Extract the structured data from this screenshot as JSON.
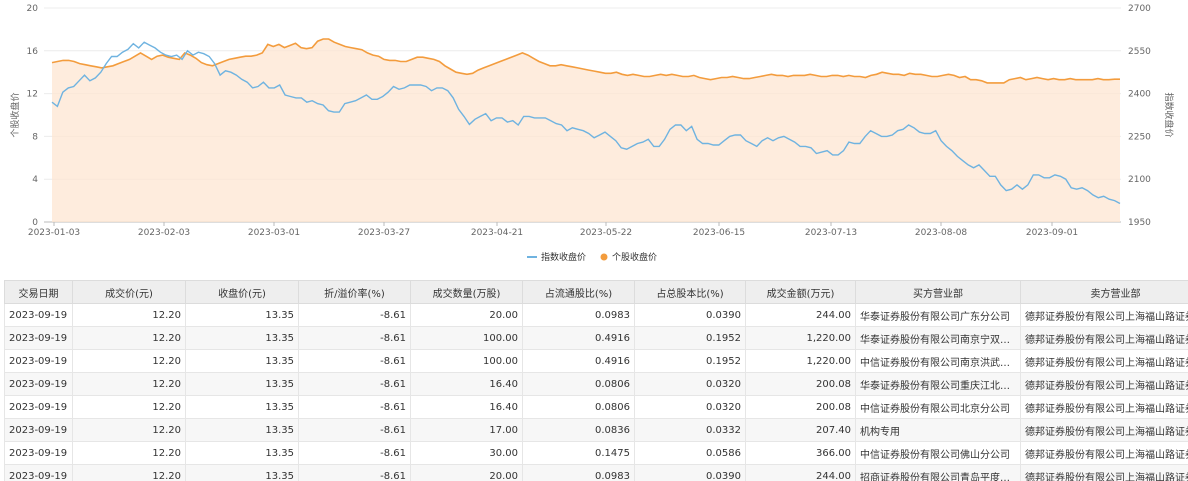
{
  "chart_data": {
    "type": "line",
    "x_ticks": [
      "2023-01-03",
      "2023-02-03",
      "2023-03-01",
      "2023-03-27",
      "2023-04-21",
      "2023-05-22",
      "2023-06-15",
      "2023-07-13",
      "2023-08-08",
      "2023-09-01"
    ],
    "y_left": {
      "label": "个股收盘价",
      "ticks": [
        0,
        4,
        8,
        12,
        16,
        20
      ],
      "range": [
        0,
        20
      ]
    },
    "y_right": {
      "label": "指数收盘价",
      "ticks": [
        1950,
        2100,
        2250,
        2400,
        2550,
        2700
      ],
      "range": [
        1950,
        2700
      ]
    },
    "grid": true,
    "legend_position": "bottom",
    "colors": {
      "index": "#6fb3e0",
      "stock": "#f39c3d",
      "stock_fill": "#fde6d2"
    },
    "series": [
      {
        "name": "指数收盘价",
        "axis": "right",
        "values": [
          2370,
          2355,
          2405,
          2420,
          2425,
          2445,
          2465,
          2445,
          2455,
          2475,
          2505,
          2530,
          2530,
          2545,
          2555,
          2575,
          2560,
          2580,
          2570,
          2560,
          2545,
          2535,
          2530,
          2535,
          2520,
          2550,
          2535,
          2545,
          2540,
          2530,
          2505,
          2465,
          2480,
          2475,
          2465,
          2450,
          2440,
          2420,
          2425,
          2440,
          2420,
          2420,
          2430,
          2395,
          2390,
          2385,
          2385,
          2370,
          2375,
          2365,
          2360,
          2340,
          2335,
          2335,
          2365,
          2370,
          2375,
          2385,
          2395,
          2380,
          2380,
          2390,
          2405,
          2425,
          2415,
          2420,
          2430,
          2430,
          2430,
          2425,
          2410,
          2420,
          2420,
          2410,
          2385,
          2345,
          2320,
          2292,
          2310,
          2320,
          2330,
          2305,
          2315,
          2315,
          2300,
          2305,
          2290,
          2320,
          2320,
          2315,
          2315,
          2315,
          2305,
          2295,
          2290,
          2270,
          2280,
          2275,
          2270,
          2260,
          2245,
          2255,
          2265,
          2250,
          2235,
          2210,
          2205,
          2215,
          2225,
          2230,
          2240,
          2215,
          2215,
          2240,
          2275,
          2290,
          2290,
          2270,
          2285,
          2240,
          2225,
          2225,
          2220,
          2220,
          2235,
          2250,
          2255,
          2255,
          2235,
          2225,
          2215,
          2235,
          2245,
          2235,
          2245,
          2250,
          2240,
          2230,
          2215,
          2215,
          2210,
          2190,
          2195,
          2200,
          2185,
          2185,
          2200,
          2230,
          2225,
          2225,
          2250,
          2270,
          2260,
          2250,
          2250,
          2255,
          2270,
          2275,
          2290,
          2280,
          2265,
          2260,
          2260,
          2270,
          2235,
          2215,
          2200,
          2180,
          2165,
          2150,
          2140,
          2150,
          2130,
          2110,
          2110,
          2080,
          2060,
          2065,
          2080,
          2065,
          2080,
          2115,
          2115,
          2105,
          2105,
          2115,
          2110,
          2100,
          2070,
          2065,
          2070,
          2060,
          2045,
          2035,
          2040,
          2030,
          2025,
          2015
        ]
      },
      {
        "name": "个股收盘价",
        "axis": "left",
        "values": [
          14.9,
          15.0,
          15.1,
          15.1,
          15.0,
          14.8,
          14.7,
          14.6,
          14.5,
          14.4,
          14.5,
          14.6,
          14.8,
          15.0,
          15.2,
          15.5,
          15.8,
          15.5,
          15.2,
          15.5,
          15.6,
          15.4,
          15.3,
          15.2,
          15.8,
          15.6,
          15.3,
          14.9,
          14.7,
          14.6,
          14.8,
          15.0,
          15.2,
          15.3,
          15.4,
          15.5,
          15.5,
          15.6,
          15.8,
          16.6,
          16.4,
          16.6,
          16.3,
          16.5,
          16.7,
          16.3,
          16.2,
          16.3,
          16.9,
          17.1,
          17.1,
          16.8,
          16.6,
          16.4,
          16.3,
          16.2,
          16.1,
          15.8,
          15.6,
          15.5,
          15.2,
          15.1,
          15.1,
          15.0,
          15.0,
          15.2,
          15.4,
          15.4,
          15.3,
          15.2,
          15.0,
          14.6,
          14.3,
          14.0,
          13.9,
          13.8,
          13.9,
          14.2,
          14.4,
          14.6,
          14.8,
          15.0,
          15.2,
          15.4,
          15.6,
          15.8,
          15.6,
          15.3,
          15.0,
          14.8,
          14.6,
          14.6,
          14.7,
          14.6,
          14.5,
          14.4,
          14.3,
          14.2,
          14.1,
          14.0,
          13.9,
          13.9,
          14.0,
          13.8,
          13.7,
          13.8,
          13.7,
          13.6,
          13.6,
          13.7,
          13.8,
          13.7,
          13.8,
          13.7,
          13.6,
          13.6,
          13.7,
          13.5,
          13.4,
          13.3,
          13.4,
          13.5,
          13.5,
          13.6,
          13.5,
          13.4,
          13.4,
          13.5,
          13.6,
          13.7,
          13.8,
          13.7,
          13.7,
          13.6,
          13.7,
          13.7,
          13.7,
          13.8,
          13.7,
          13.6,
          13.6,
          13.7,
          13.7,
          13.6,
          13.7,
          13.6,
          13.6,
          13.5,
          13.7,
          13.8,
          14.0,
          13.9,
          13.8,
          13.8,
          13.7,
          13.9,
          13.8,
          13.8,
          13.7,
          13.6,
          13.6,
          13.7,
          13.8,
          13.7,
          13.5,
          13.6,
          13.3,
          13.3,
          13.2,
          13.0,
          13.0,
          13.0,
          13.0,
          13.3,
          13.4,
          13.5,
          13.3,
          13.4,
          13.5,
          13.4,
          13.3,
          13.4,
          13.3,
          13.3,
          13.4,
          13.3,
          13.3,
          13.3,
          13.3,
          13.4,
          13.3,
          13.3,
          13.35,
          13.35
        ]
      }
    ]
  },
  "table": {
    "headers": [
      "交易日期",
      "成交价(元)",
      "收盘价(元)",
      "折/溢价率(%)",
      "成交数量(万股)",
      "占流通股比(%)",
      "占总股本比(%)",
      "成交金额(万元)",
      "买方营业部",
      "卖方营业部"
    ],
    "rows": [
      [
        "2023-09-19",
        "12.20",
        "13.35",
        "-8.61",
        "20.00",
        "0.0983",
        "0.0390",
        "244.00",
        "华泰证券股份有限公司广东分公司",
        "德邦证券股份有限公司上海福山路证券营业部"
      ],
      [
        "2023-09-19",
        "12.20",
        "13.35",
        "-8.61",
        "100.00",
        "0.4916",
        "0.1952",
        "1,220.00",
        "华泰证券股份有限公司南京宁双路证券营业部",
        "德邦证券股份有限公司上海福山路证券营业部"
      ],
      [
        "2023-09-19",
        "12.20",
        "13.35",
        "-8.61",
        "100.00",
        "0.4916",
        "0.1952",
        "1,220.00",
        "中信证券股份有限公司南京洪武北路证券营业部",
        "德邦证券股份有限公司上海福山路证券营业部"
      ],
      [
        "2023-09-19",
        "12.20",
        "13.35",
        "-8.61",
        "16.40",
        "0.0806",
        "0.0320",
        "200.08",
        "华泰证券股份有限公司重庆江北嘴证券营业部",
        "德邦证券股份有限公司上海福山路证券营业部"
      ],
      [
        "2023-09-19",
        "12.20",
        "13.35",
        "-8.61",
        "16.40",
        "0.0806",
        "0.0320",
        "200.08",
        "中信证券股份有限公司北京分公司",
        "德邦证券股份有限公司上海福山路证券营业部"
      ],
      [
        "2023-09-19",
        "12.20",
        "13.35",
        "-8.61",
        "17.00",
        "0.0836",
        "0.0332",
        "207.40",
        "机构专用",
        "德邦证券股份有限公司上海福山路证券营业部"
      ],
      [
        "2023-09-19",
        "12.20",
        "13.35",
        "-8.61",
        "30.00",
        "0.1475",
        "0.0586",
        "366.00",
        "中信证券股份有限公司佛山分公司",
        "德邦证券股份有限公司上海福山路证券营业部"
      ],
      [
        "2023-09-19",
        "12.20",
        "13.35",
        "-8.61",
        "20.00",
        "0.0983",
        "0.0390",
        "244.00",
        "招商证券股份有限公司青岛平度市证券营业部",
        "德邦证券股份有限公司上海福山路证券营业部"
      ]
    ]
  }
}
